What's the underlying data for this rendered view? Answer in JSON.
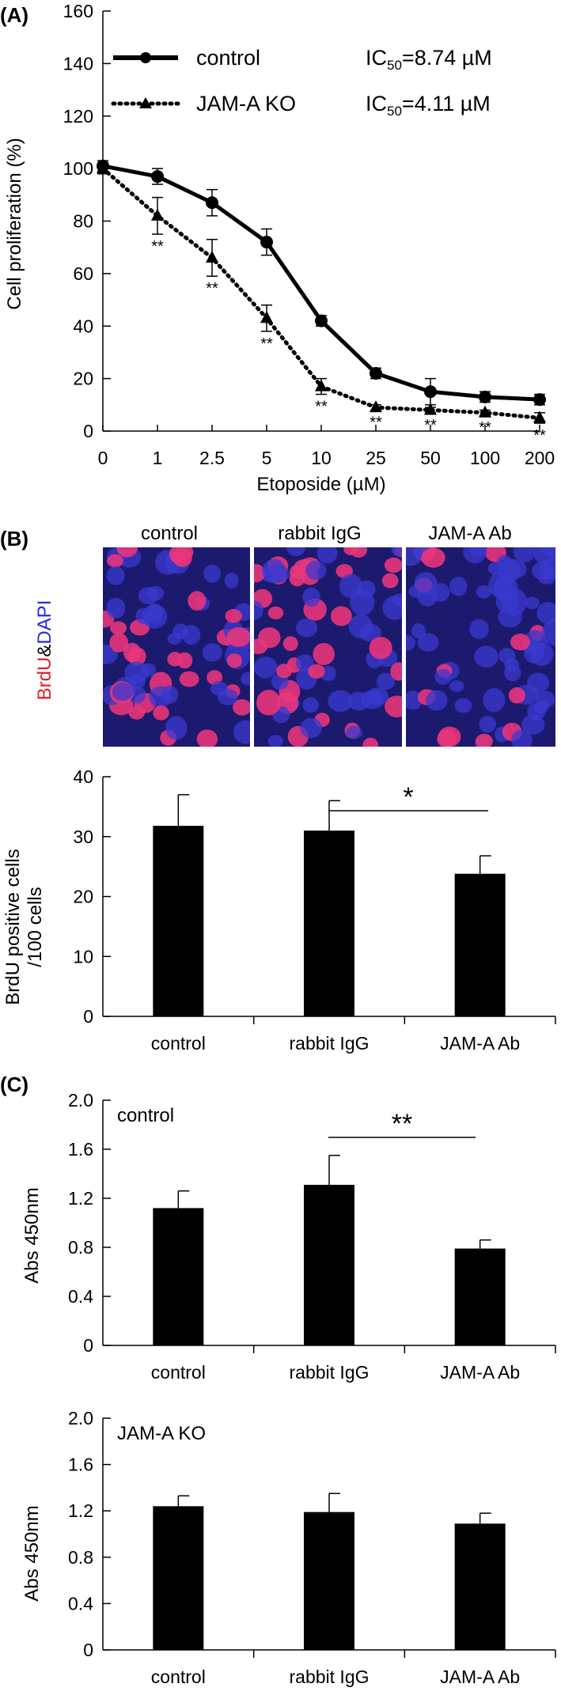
{
  "panel_labels": {
    "a": "(A)",
    "b": "(B)",
    "c": "(C)"
  },
  "chart_data": [
    {
      "type": "line",
      "panel": "A",
      "xlabel": "Etoposide (µM)",
      "ylabel": "Cell proliferation (%)",
      "ylim": [
        0,
        160
      ],
      "yticks": [
        "0",
        "20",
        "40",
        "60",
        "80",
        "100",
        "120",
        "140",
        "160"
      ],
      "categories": [
        "0",
        "1",
        "2.5",
        "5",
        "10",
        "25",
        "50",
        "100",
        "200"
      ],
      "series": [
        {
          "name": "control",
          "marker": "circle",
          "line": "solid",
          "ic50_label": "IC",
          "ic50_sub": "50",
          "ic50_value": "=8.74 µM",
          "values": [
            101,
            97,
            87,
            72,
            42,
            22,
            15,
            13,
            12
          ],
          "errors": [
            2,
            3,
            5,
            5,
            2,
            2,
            5,
            2,
            2
          ]
        },
        {
          "name": "JAM-A KO",
          "marker": "triangle",
          "line": "dotted",
          "ic50_label": "IC",
          "ic50_sub": "50",
          "ic50_value": "=4.11 µM",
          "values": [
            100,
            82,
            66,
            43,
            17,
            9,
            8,
            7,
            5
          ],
          "errors": [
            2,
            7,
            7,
            5,
            3,
            1,
            1,
            1,
            2
          ]
        }
      ],
      "annotations": [
        "",
        "**",
        "**",
        "**",
        "**",
        "**",
        "**",
        "**",
        "**"
      ]
    },
    {
      "type": "bar",
      "panel": "B",
      "ylabel_line1": "BrdU positive cells",
      "ylabel_line2": "/100 cells",
      "ylim": [
        0,
        40
      ],
      "yticks": [
        "0",
        "10",
        "20",
        "30",
        "40"
      ],
      "categories": [
        "control",
        "rabbit IgG",
        "JAM-A Ab"
      ],
      "values": [
        31.8,
        31,
        23.8
      ],
      "errors": [
        5.2,
        5,
        3
      ],
      "significance": "*"
    },
    {
      "type": "bar",
      "panel": "C",
      "inset_label": "control",
      "ylabel": "Abs 450nm",
      "ylim": [
        0,
        2.0
      ],
      "yticks": [
        "0",
        "0.4",
        "0.8",
        "1.2",
        "1.6",
        "2.0"
      ],
      "categories": [
        "control",
        "rabbit IgG",
        "JAM-A Ab"
      ],
      "values": [
        1.12,
        1.31,
        0.79
      ],
      "errors": [
        0.14,
        0.24,
        0.07
      ],
      "significance": "**"
    },
    {
      "type": "bar",
      "panel": "C",
      "inset_label": "JAM-A KO",
      "ylabel": "Abs 450nm",
      "ylim": [
        0,
        2.0
      ],
      "yticks": [
        "0",
        "0.4",
        "0.8",
        "1.2",
        "1.6",
        "2.0"
      ],
      "categories": [
        "control",
        "rabbit IgG",
        "JAM-A Ab"
      ],
      "values": [
        1.24,
        1.19,
        1.09
      ],
      "errors": [
        0.09,
        0.16,
        0.09
      ]
    }
  ],
  "micrographs": {
    "titles": [
      "control",
      "rabbit IgG",
      "JAM-A Ab"
    ],
    "stain_label_red": "BrdU",
    "stain_label_amp": "&",
    "stain_label_blue": "DAPI",
    "background_color": "#1c1a6e",
    "nucleus_color_blue": "#3a3ad0",
    "nucleus_color_red": "#e8357a"
  },
  "colors": {
    "bar": "#000000",
    "axis": "#000000",
    "stain_red": "#e0202a",
    "stain_blue": "#2a2ad8"
  }
}
